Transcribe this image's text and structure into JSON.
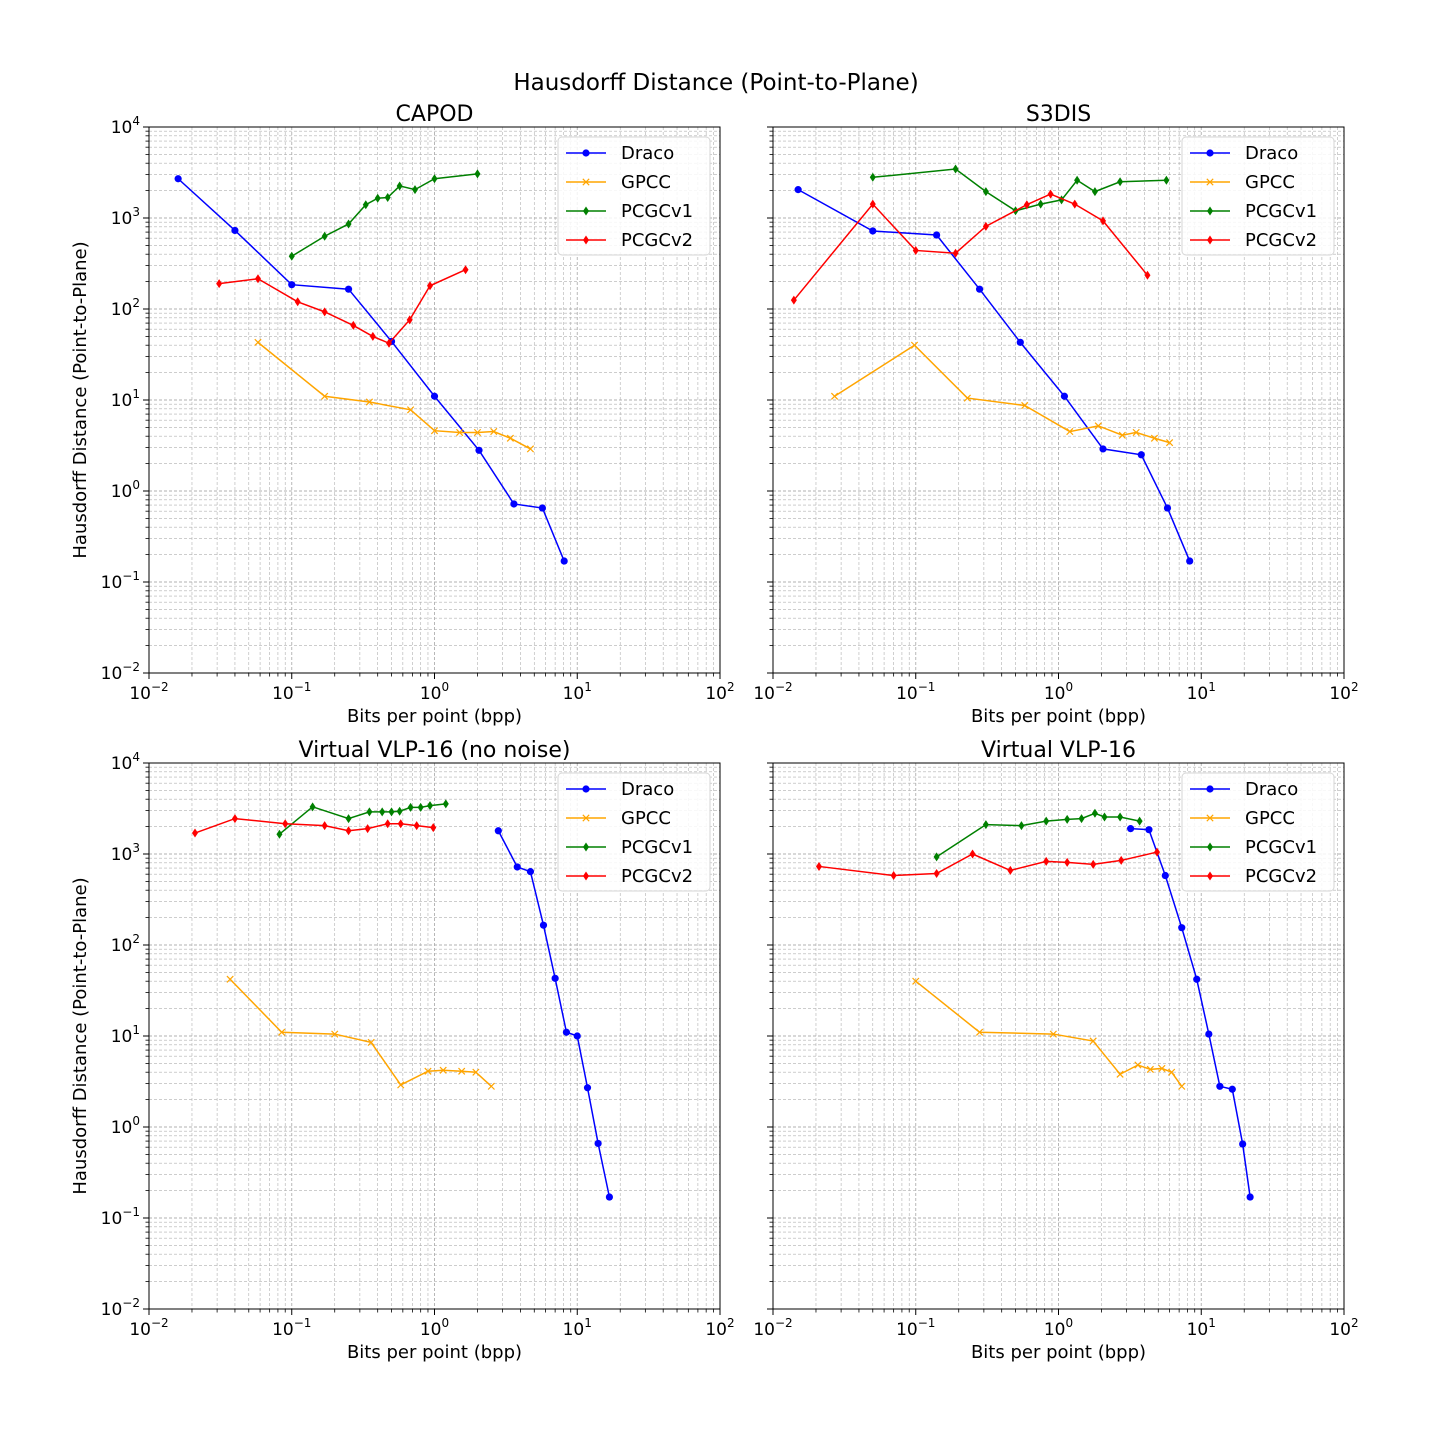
{
  "suptitle": "Hausdorff Distance (Point-to-Plane)",
  "colors": {
    "Draco": "#0000ff",
    "GPCC": "#ffa500",
    "PCGCv1": "#008000",
    "PCGCv2": "#ff0000"
  },
  "chart_data": [
    {
      "type": "line",
      "title": "CAPOD",
      "xlabel": "Bits per point (bpp)",
      "ylabel": "Hausdorff Distance (Point-to-Plane)",
      "xscale": "log",
      "yscale": "log",
      "xlim": [
        0.01,
        100
      ],
      "ylim": [
        0.01,
        10000
      ],
      "xticks": [
        "10^-2",
        "10^-1",
        "10^0",
        "10^1",
        "10^2"
      ],
      "yticks": [
        "10^-2",
        "10^-1",
        "10^0",
        "10^1",
        "10^2",
        "10^3",
        "10^4"
      ],
      "grid": true,
      "legend": "top-right",
      "series": [
        {
          "name": "Draco",
          "marker": "circle",
          "x": [
            0.016,
            0.04,
            0.1,
            0.25,
            0.5,
            1.0,
            2.05,
            3.6,
            5.7,
            8.1
          ],
          "y": [
            2700,
            730,
            185,
            165,
            44,
            11,
            2.8,
            0.72,
            0.65,
            0.17
          ]
        },
        {
          "name": "GPCC",
          "marker": "x",
          "x": [
            0.058,
            0.17,
            0.35,
            0.68,
            1.0,
            1.5,
            2.0,
            2.6,
            3.4,
            4.7
          ],
          "y": [
            43,
            11,
            9.5,
            7.8,
            4.6,
            4.4,
            4.4,
            4.5,
            3.8,
            2.9
          ]
        },
        {
          "name": "PCGCv1",
          "marker": "diamond",
          "x": [
            0.1,
            0.17,
            0.25,
            0.33,
            0.4,
            0.47,
            0.57,
            0.73,
            1.0,
            2.0
          ],
          "y": [
            380,
            630,
            860,
            1400,
            1650,
            1680,
            2250,
            2050,
            2700,
            3050
          ]
        },
        {
          "name": "PCGCv2",
          "marker": "diamond",
          "x": [
            0.031,
            0.058,
            0.11,
            0.17,
            0.27,
            0.37,
            0.48,
            0.67,
            0.93,
            1.65
          ],
          "y": [
            190,
            215,
            120,
            93,
            66,
            50,
            42,
            76,
            180,
            270
          ]
        }
      ]
    },
    {
      "type": "line",
      "title": "S3DIS",
      "xlabel": "Bits per point (bpp)",
      "ylabel": "",
      "xscale": "log",
      "yscale": "log",
      "xlim": [
        0.01,
        100
      ],
      "ylim": [
        0.01,
        10000
      ],
      "xticks": [
        "10^-2",
        "10^-1",
        "10^0",
        "10^1",
        "10^2"
      ],
      "yticks": [],
      "grid": true,
      "legend": "top-right",
      "series": [
        {
          "name": "Draco",
          "marker": "circle",
          "x": [
            0.015,
            0.05,
            0.14,
            0.28,
            0.54,
            1.1,
            2.05,
            3.8,
            5.8,
            8.3
          ],
          "y": [
            2050,
            720,
            650,
            165,
            43,
            11,
            2.9,
            2.5,
            0.65,
            0.17
          ]
        },
        {
          "name": "GPCC",
          "marker": "x",
          "x": [
            0.027,
            0.098,
            0.23,
            0.58,
            1.2,
            1.9,
            2.8,
            3.5,
            4.7,
            6.0
          ],
          "y": [
            11,
            40,
            10.5,
            8.7,
            4.5,
            5.2,
            4.1,
            4.4,
            3.8,
            3.4
          ]
        },
        {
          "name": "PCGCv1",
          "marker": "diamond",
          "x": [
            0.05,
            0.19,
            0.31,
            0.5,
            0.75,
            1.05,
            1.35,
            1.8,
            2.7,
            5.7
          ],
          "y": [
            2800,
            3450,
            1950,
            1200,
            1420,
            1580,
            2600,
            1950,
            2500,
            2600
          ]
        },
        {
          "name": "PCGCv2",
          "marker": "diamond",
          "x": [
            0.014,
            0.05,
            0.1,
            0.19,
            0.31,
            0.6,
            0.88,
            1.3,
            2.05,
            4.2
          ],
          "y": [
            125,
            1420,
            440,
            410,
            810,
            1400,
            1830,
            1420,
            930,
            235
          ]
        }
      ]
    },
    {
      "type": "line",
      "title": "Virtual VLP-16 (no noise)",
      "xlabel": "Bits per point (bpp)",
      "ylabel": "Hausdorff Distance (Point-to-Plane)",
      "xscale": "log",
      "yscale": "log",
      "xlim": [
        0.01,
        100
      ],
      "ylim": [
        0.01,
        10000
      ],
      "xticks": [
        "10^-2",
        "10^-1",
        "10^0",
        "10^1",
        "10^2"
      ],
      "yticks": [
        "10^-2",
        "10^-1",
        "10^0",
        "10^1",
        "10^2",
        "10^3",
        "10^4"
      ],
      "grid": true,
      "legend": "top-right",
      "series": [
        {
          "name": "Draco",
          "marker": "circle",
          "x": [
            2.8,
            3.8,
            4.7,
            5.8,
            7.0,
            8.4,
            10.0,
            11.8,
            14.0,
            16.8
          ],
          "y": [
            1800,
            720,
            640,
            165,
            43,
            11,
            10,
            2.7,
            0.66,
            0.17
          ]
        },
        {
          "name": "GPCC",
          "marker": "x",
          "x": [
            0.037,
            0.085,
            0.2,
            0.36,
            0.58,
            0.9,
            1.15,
            1.55,
            1.95,
            2.5
          ],
          "y": [
            42,
            11,
            10.5,
            8.5,
            2.9,
            4.1,
            4.2,
            4.1,
            4.0,
            2.8
          ]
        },
        {
          "name": "PCGCv1",
          "marker": "diamond",
          "x": [
            0.082,
            0.14,
            0.25,
            0.35,
            0.43,
            0.5,
            0.57,
            0.68,
            0.8,
            0.93,
            1.2
          ],
          "y": [
            1650,
            3300,
            2450,
            2900,
            2900,
            2900,
            2950,
            3250,
            3250,
            3400,
            3550
          ]
        },
        {
          "name": "PCGCv2",
          "marker": "diamond",
          "x": [
            0.021,
            0.04,
            0.09,
            0.17,
            0.25,
            0.34,
            0.47,
            0.58,
            0.75,
            0.98
          ],
          "y": [
            1700,
            2450,
            2150,
            2050,
            1800,
            1900,
            2150,
            2150,
            2050,
            1950
          ]
        }
      ]
    },
    {
      "type": "line",
      "title": "Virtual VLP-16",
      "xlabel": "Bits per point (bpp)",
      "ylabel": "",
      "xscale": "log",
      "yscale": "log",
      "xlim": [
        0.01,
        100
      ],
      "ylim": [
        0.01,
        10000
      ],
      "xticks": [
        "10^-2",
        "10^-1",
        "10^0",
        "10^1",
        "10^2"
      ],
      "yticks": [],
      "grid": true,
      "legend": "top-right",
      "series": [
        {
          "name": "Draco",
          "marker": "circle",
          "x": [
            3.2,
            4.3,
            5.6,
            7.3,
            9.3,
            11.3,
            13.5,
            16.5,
            19.5,
            22.0
          ],
          "y": [
            1900,
            1850,
            580,
            155,
            42,
            10.5,
            2.8,
            2.6,
            0.65,
            0.17
          ]
        },
        {
          "name": "GPCC",
          "marker": "x",
          "x": [
            0.1,
            0.28,
            0.92,
            1.75,
            2.7,
            3.6,
            4.4,
            5.3,
            6.2,
            7.3
          ],
          "y": [
            40,
            11,
            10.5,
            8.8,
            3.8,
            4.8,
            4.3,
            4.4,
            4.0,
            2.8
          ]
        },
        {
          "name": "PCGCv1",
          "marker": "diamond",
          "x": [
            0.14,
            0.31,
            0.55,
            0.82,
            1.15,
            1.45,
            1.8,
            2.1,
            2.7,
            3.7
          ],
          "y": [
            930,
            2100,
            2050,
            2300,
            2400,
            2450,
            2800,
            2550,
            2550,
            2300
          ]
        },
        {
          "name": "PCGCv2",
          "marker": "diamond",
          "x": [
            0.021,
            0.07,
            0.14,
            0.25,
            0.46,
            0.82,
            1.15,
            1.75,
            2.75,
            4.9
          ],
          "y": [
            730,
            580,
            610,
            1000,
            660,
            830,
            810,
            770,
            850,
            1050
          ]
        }
      ]
    }
  ]
}
